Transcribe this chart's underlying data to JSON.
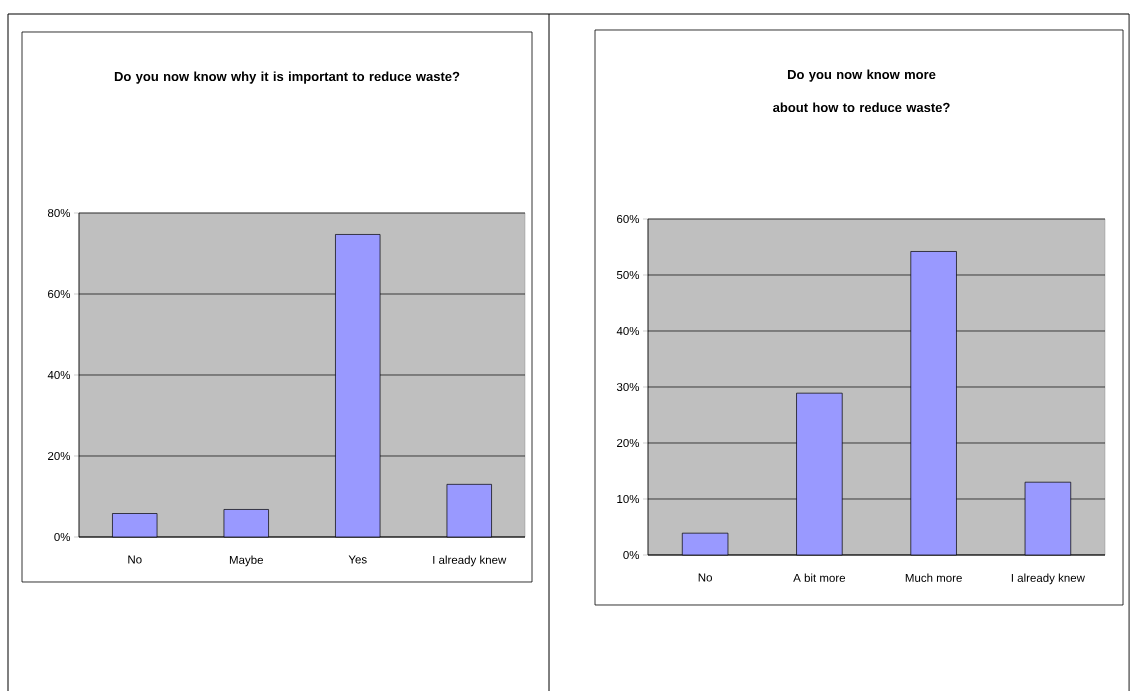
{
  "chart_data": [
    {
      "type": "bar",
      "title": "Do you now know why it is important to reduce waste?",
      "categories": [
        "No",
        "Maybe",
        "Yes",
        "I already knew"
      ],
      "values": [
        5.8,
        6.8,
        74.7,
        13.0
      ],
      "color": "#9999ff",
      "ylim": [
        0,
        80
      ],
      "yticks": [
        {
          "value": 0,
          "label": "0%"
        },
        {
          "value": 20,
          "label": "20%"
        },
        {
          "value": 40,
          "label": "40%"
        },
        {
          "value": 60,
          "label": "60%"
        },
        {
          "value": 80,
          "label": "80%"
        }
      ],
      "grid": "y"
    },
    {
      "type": "bar",
      "title": "Do you now know more about how to reduce waste?",
      "categories": [
        "No",
        "A bit more",
        "Much more",
        "I already knew"
      ],
      "values": [
        3.9,
        28.9,
        54.2,
        13.0
      ],
      "color": "#9999ff",
      "ylim": [
        0,
        60
      ],
      "yticks": [
        {
          "value": 0,
          "label": "0%"
        },
        {
          "value": 10,
          "label": "10%"
        },
        {
          "value": 20,
          "label": "20%"
        },
        {
          "value": 30,
          "label": "30%"
        },
        {
          "value": 40,
          "label": "40%"
        },
        {
          "value": 50,
          "label": "50%"
        },
        {
          "value": 60,
          "label": "60%"
        }
      ],
      "grid": "y"
    }
  ]
}
